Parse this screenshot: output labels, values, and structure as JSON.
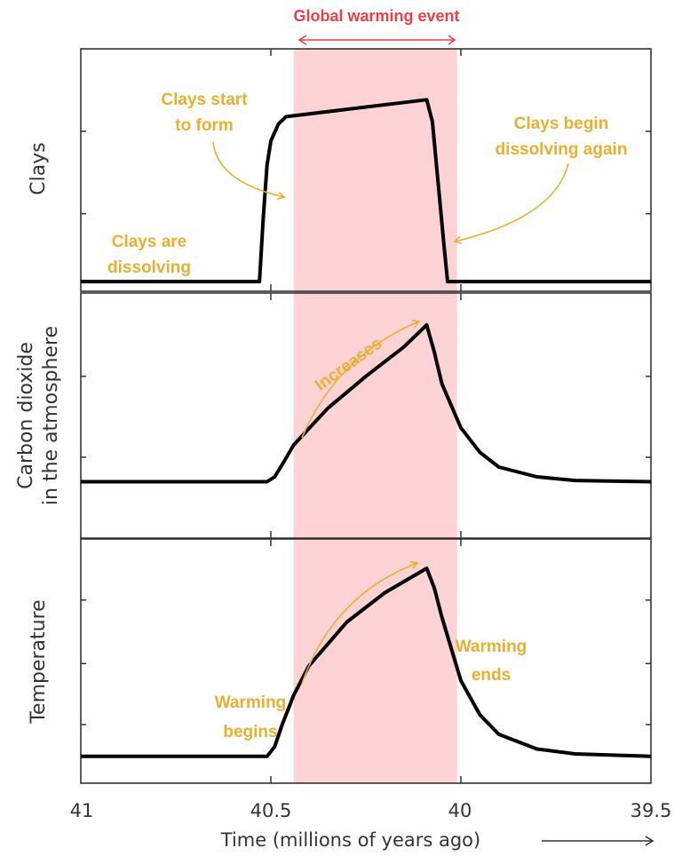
{
  "chart_data": {
    "type": "line",
    "title": "Global warming event",
    "xlabel": "Time (millions of years ago)",
    "xlim": [
      41,
      39.5
    ],
    "x_ticks": [
      "41",
      "40.5",
      "40",
      "39.5"
    ],
    "highlight": {
      "label": "Global warming event",
      "x_range": [
        40.44,
        40.01
      ],
      "color": "#fdd3d6"
    },
    "colors": {
      "line": "#000000",
      "annotation": "#e8b030",
      "title": "#e8404a"
    },
    "grid": false,
    "panels": [
      {
        "ylabel": [
          "Clays"
        ],
        "ylim": [
          0,
          1
        ],
        "y_ticks": [
          0.32,
          0.66
        ],
        "series": {
          "x": [
            41,
            40.53,
            40.52,
            40.51,
            40.5,
            40.48,
            40.46,
            40.09,
            40.075,
            40.06,
            40.045,
            40.035,
            39.5
          ],
          "y": [
            0.04,
            0.04,
            0.3,
            0.52,
            0.62,
            0.69,
            0.72,
            0.79,
            0.7,
            0.45,
            0.2,
            0.04,
            0.04
          ]
        },
        "annotations": [
          {
            "lines": [
              "Clays start",
              "to form"
            ]
          },
          {
            "lines": [
              "Clays begin",
              "dissolving again"
            ]
          },
          {
            "lines": [
              "Clays are",
              "dissolving"
            ]
          }
        ]
      },
      {
        "ylabel": [
          "Carbon dioxide",
          "in the atmosphere"
        ],
        "ylim": [
          0,
          1
        ],
        "y_ticks": [
          0.33,
          0.66
        ],
        "series": {
          "x": [
            41,
            40.51,
            40.49,
            40.47,
            40.44,
            40.35,
            40.25,
            40.15,
            40.09,
            40.07,
            40.05,
            40.0,
            39.95,
            39.9,
            39.8,
            39.7,
            39.5
          ],
          "y": [
            0.23,
            0.23,
            0.25,
            0.3,
            0.38,
            0.53,
            0.66,
            0.78,
            0.87,
            0.76,
            0.63,
            0.45,
            0.35,
            0.29,
            0.25,
            0.235,
            0.23
          ]
        },
        "annotations": [
          {
            "lines": [
              "Increases"
            ]
          }
        ]
      },
      {
        "ylabel": [
          "Temperature"
        ],
        "ylim": [
          0,
          1
        ],
        "y_ticks": [
          0.24,
          0.49,
          0.75
        ],
        "series": {
          "x": [
            41,
            40.51,
            40.49,
            40.47,
            40.44,
            40.4,
            40.3,
            40.2,
            40.09,
            40.07,
            40.05,
            40.0,
            39.95,
            39.9,
            39.8,
            39.7,
            39.5
          ],
          "y": [
            0.11,
            0.11,
            0.15,
            0.24,
            0.36,
            0.48,
            0.66,
            0.78,
            0.88,
            0.8,
            0.68,
            0.42,
            0.28,
            0.2,
            0.14,
            0.12,
            0.11
          ]
        },
        "annotations": [
          {
            "lines": [
              "Warming",
              "begins"
            ]
          },
          {
            "lines": [
              "Warming",
              "ends"
            ]
          }
        ]
      }
    ]
  }
}
